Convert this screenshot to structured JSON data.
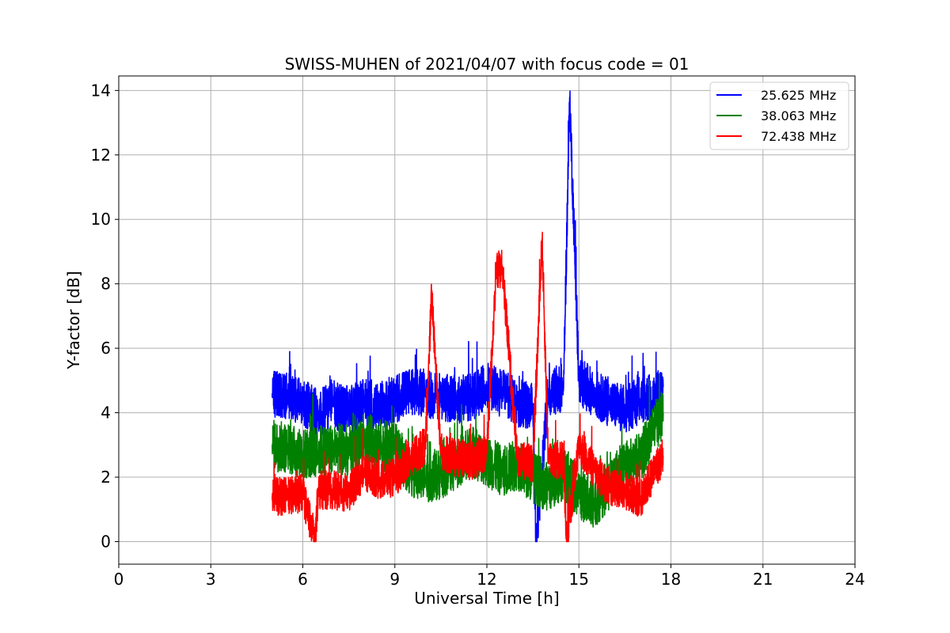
{
  "chart_data": {
    "type": "line",
    "title": "SWISS-MUHEN of 2021/04/07 with focus code = 01",
    "xlabel": "Universal Time [h]",
    "ylabel": "Y-factor [dB]",
    "xlim": [
      0,
      24
    ],
    "ylim": [
      -0.7,
      14.45
    ],
    "xticks": [
      0,
      3,
      6,
      9,
      12,
      15,
      18,
      21,
      24
    ],
    "yticks": [
      0,
      2,
      4,
      6,
      8,
      10,
      12,
      14
    ],
    "xtick_labels": [
      "0",
      "3",
      "6",
      "9",
      "12",
      "15",
      "18",
      "21",
      "24"
    ],
    "ytick_labels": [
      "0",
      "2",
      "4",
      "6",
      "8",
      "10",
      "12",
      "14"
    ],
    "grid": true,
    "legend_position": "top-right",
    "series": [
      {
        "name": "25.625 MHz",
        "color": "#0000ff",
        "points": [
          [
            5.0,
            4.6
          ],
          [
            5.5,
            4.5
          ],
          [
            6.0,
            4.3
          ],
          [
            6.5,
            4.0
          ],
          [
            7.0,
            4.2
          ],
          [
            7.5,
            4.1
          ],
          [
            8.0,
            4.3
          ],
          [
            8.5,
            4.2
          ],
          [
            9.0,
            4.4
          ],
          [
            9.5,
            4.7
          ],
          [
            10.0,
            4.6
          ],
          [
            10.5,
            4.5
          ],
          [
            11.0,
            4.4
          ],
          [
            11.5,
            4.5
          ],
          [
            12.0,
            4.8
          ],
          [
            12.5,
            4.6
          ],
          [
            13.0,
            4.3
          ],
          [
            13.5,
            4.2
          ],
          [
            13.6,
            0.0
          ],
          [
            14.0,
            4.6
          ],
          [
            14.5,
            4.8
          ],
          [
            14.7,
            13.8
          ],
          [
            15.0,
            5.0
          ],
          [
            15.5,
            4.6
          ],
          [
            16.0,
            4.3
          ],
          [
            16.5,
            4.1
          ],
          [
            17.0,
            4.4
          ],
          [
            17.5,
            4.5
          ],
          [
            17.75,
            4.8
          ]
        ]
      },
      {
        "name": "38.063 MHz",
        "color": "#008000",
        "points": [
          [
            5.0,
            3.0
          ],
          [
            5.5,
            2.9
          ],
          [
            6.0,
            2.7
          ],
          [
            6.5,
            2.8
          ],
          [
            7.0,
            2.9
          ],
          [
            7.5,
            2.8
          ],
          [
            8.0,
            3.2
          ],
          [
            8.5,
            3.0
          ],
          [
            9.0,
            2.9
          ],
          [
            9.5,
            2.2
          ],
          [
            10.0,
            2.0
          ],
          [
            10.5,
            2.1
          ],
          [
            11.0,
            2.4
          ],
          [
            11.5,
            2.8
          ],
          [
            12.0,
            2.5
          ],
          [
            12.5,
            2.2
          ],
          [
            13.0,
            2.4
          ],
          [
            13.5,
            2.0
          ],
          [
            14.0,
            1.7
          ],
          [
            14.5,
            2.1
          ],
          [
            15.0,
            1.5
          ],
          [
            15.5,
            1.2
          ],
          [
            16.0,
            1.8
          ],
          [
            16.5,
            2.4
          ],
          [
            17.0,
            2.6
          ],
          [
            17.5,
            3.6
          ],
          [
            17.75,
            4.0
          ]
        ]
      },
      {
        "name": "72.438 MHz",
        "color": "#ff0000",
        "points": [
          [
            5.0,
            1.4
          ],
          [
            5.5,
            1.4
          ],
          [
            6.0,
            1.5
          ],
          [
            6.4,
            0.0
          ],
          [
            6.5,
            1.6
          ],
          [
            7.0,
            1.6
          ],
          [
            7.5,
            1.5
          ],
          [
            8.0,
            2.2
          ],
          [
            8.5,
            1.9
          ],
          [
            9.0,
            2.0
          ],
          [
            9.5,
            2.5
          ],
          [
            10.0,
            3.0
          ],
          [
            10.2,
            7.7
          ],
          [
            10.5,
            2.8
          ],
          [
            11.0,
            2.6
          ],
          [
            11.5,
            2.5
          ],
          [
            12.0,
            2.8
          ],
          [
            12.3,
            8.4
          ],
          [
            12.5,
            8.5
          ],
          [
            13.0,
            2.6
          ],
          [
            13.5,
            2.4
          ],
          [
            13.8,
            9.4
          ],
          [
            14.0,
            2.6
          ],
          [
            14.5,
            2.5
          ],
          [
            14.6,
            0.0
          ],
          [
            15.0,
            3.0
          ],
          [
            15.5,
            2.2
          ],
          [
            16.0,
            1.7
          ],
          [
            16.5,
            1.6
          ],
          [
            17.0,
            1.3
          ],
          [
            17.5,
            2.3
          ],
          [
            17.75,
            2.6
          ]
        ]
      }
    ]
  }
}
